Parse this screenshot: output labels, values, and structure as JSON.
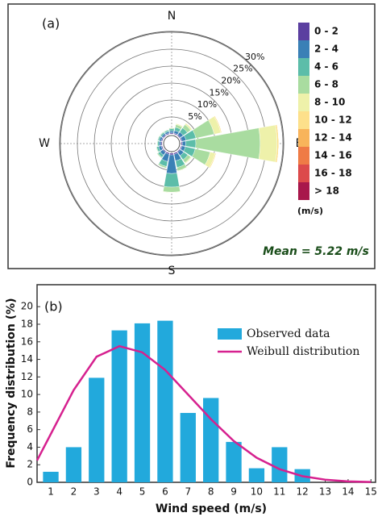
{
  "chart_data": [
    {
      "type": "rose",
      "panel_label": "(a)",
      "categories": [
        "N",
        null,
        null,
        null,
        "E",
        null,
        null,
        null,
        "S",
        null,
        null,
        null,
        "W",
        null,
        null,
        null
      ],
      "rlim": [
        0,
        30
      ],
      "rticks": [
        {
          "value": 5,
          "label": "5%"
        },
        {
          "value": 10,
          "label": "10%"
        },
        {
          "value": 15,
          "label": "15%"
        },
        {
          "value": 20,
          "label": "20%"
        },
        {
          "value": 25,
          "label": "25%"
        },
        {
          "value": 30,
          "label": "30%"
        }
      ],
      "legend_title": "(m/s)",
      "annotation": "Mean = 5.22 m/s",
      "series": [
        {
          "name": "0 - 2",
          "color": "#5b3fa0",
          "values": [
            0.3,
            0.3,
            0.3,
            0.3,
            0.3,
            0.3,
            0.3,
            0.4,
            0.5,
            0.4,
            0.3,
            0.3,
            0.3,
            0.3,
            0.3,
            0.3
          ]
        },
        {
          "name": "2 - 4",
          "color": "#3a80b6",
          "values": [
            0.6,
            0.8,
            1.0,
            1.2,
            1.0,
            1.0,
            1.2,
            2.0,
            5.5,
            2.2,
            1.0,
            0.8,
            0.6,
            0.6,
            0.5,
            0.5
          ]
        },
        {
          "name": "4 - 6",
          "color": "#5cbda9",
          "values": [
            0.6,
            1.0,
            1.5,
            3.0,
            3.0,
            3.0,
            1.5,
            2.0,
            4.0,
            1.5,
            0.8,
            0.6,
            0.4,
            0.4,
            0.4,
            0.4
          ]
        },
        {
          "name": "6 - 8",
          "color": "#a9dca0",
          "values": [
            0.3,
            0.8,
            1.2,
            5.5,
            19.0,
            4.5,
            1.0,
            1.0,
            1.5,
            0.5,
            0.3,
            0.2,
            0.2,
            0.2,
            0.2,
            0.2
          ]
        },
        {
          "name": "8 - 10",
          "color": "#eef1aa",
          "values": [
            0.1,
            0.3,
            0.5,
            2.0,
            5.0,
            1.5,
            0.3,
            0.2,
            0.2,
            0.1,
            0.1,
            0.1,
            0.1,
            0,
            0.1,
            0.1
          ]
        },
        {
          "name": "10 - 12",
          "color": "#fde08b",
          "values": [
            0,
            0.1,
            0.1,
            0.3,
            0.5,
            0.3,
            0.1,
            0,
            0,
            0,
            0,
            0,
            0,
            0,
            0,
            0
          ]
        },
        {
          "name": "12 - 14",
          "color": "#f8b45b",
          "values": [
            0,
            0,
            0,
            0,
            0,
            0,
            0,
            0,
            0,
            0,
            0,
            0,
            0,
            0,
            0,
            0
          ]
        },
        {
          "name": "14 - 16",
          "color": "#ef7b46",
          "values": [
            0,
            0,
            0,
            0,
            0,
            0,
            0,
            0,
            0,
            0,
            0,
            0,
            0,
            0,
            0,
            0
          ]
        },
        {
          "name": "16 - 18",
          "color": "#dc4a4b",
          "values": [
            0,
            0,
            0,
            0,
            0,
            0,
            0,
            0,
            0,
            0,
            0,
            0,
            0,
            0,
            0,
            0
          ]
        },
        {
          "name": "> 18",
          "color": "#a8174b",
          "values": [
            0,
            0,
            0,
            0,
            0,
            0,
            0,
            0,
            0,
            0,
            0,
            0,
            0,
            0,
            0,
            0
          ]
        }
      ]
    },
    {
      "type": "bar",
      "panel_label": "(b)",
      "xlabel": "Wind speed (m/s)",
      "ylabel": "Frequency distribution (%)",
      "xlim": [
        0.4,
        15.2
      ],
      "ylim": [
        0,
        22.5
      ],
      "xticks": [
        1,
        2,
        3,
        4,
        5,
        6,
        7,
        8,
        9,
        10,
        11,
        12,
        13,
        14,
        15
      ],
      "yticks": [
        0,
        2,
        4,
        6,
        8,
        10,
        12,
        14,
        16,
        18,
        20
      ],
      "legend": "upper right",
      "series": [
        {
          "name": "Observed data",
          "type": "bar",
          "color": "#22a9dc",
          "x": [
            1,
            2,
            3,
            4,
            5,
            6,
            7,
            8,
            9,
            10,
            11,
            12
          ],
          "values": [
            1.2,
            4.0,
            11.9,
            17.3,
            18.1,
            18.4,
            7.9,
            9.6,
            4.6,
            1.6,
            4.0,
            1.5
          ]
        },
        {
          "name": "Weibull distribution",
          "type": "line",
          "color": "#d6218f",
          "x": [
            0.4,
            1,
            2,
            3,
            4,
            5,
            6,
            7,
            8,
            9,
            10,
            11,
            12,
            13,
            14,
            15
          ],
          "values": [
            2.5,
            5.5,
            10.5,
            14.3,
            15.5,
            14.8,
            12.8,
            10.0,
            7.2,
            4.7,
            2.8,
            1.5,
            0.7,
            0.3,
            0.1,
            0.03
          ]
        }
      ]
    }
  ]
}
